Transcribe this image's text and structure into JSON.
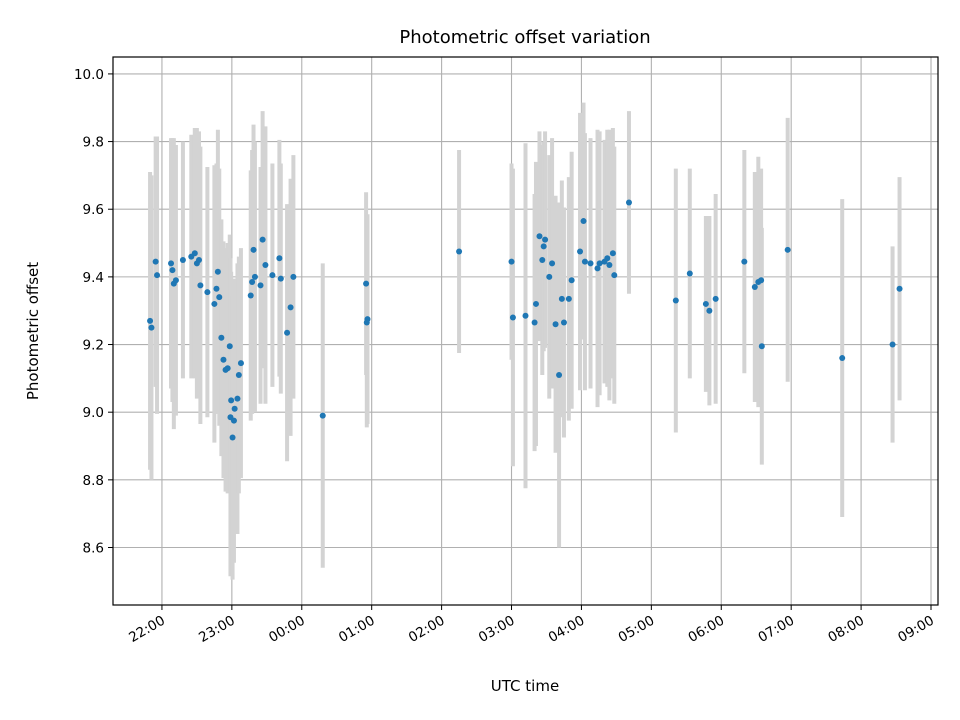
{
  "chart_data": {
    "type": "scatter",
    "title": "Photometric offset variation",
    "xlabel": "UTC time",
    "ylabel": "Photometric offset",
    "x_start": "21:10",
    "xlim_hours": [
      21.3,
      33.1
    ],
    "ylim": [
      8.43,
      10.05
    ],
    "x_ticks": [
      "22:00",
      "23:00",
      "00:00",
      "01:00",
      "02:00",
      "03:00",
      "04:00",
      "05:00",
      "06:00",
      "07:00",
      "08:00",
      "09:00"
    ],
    "y_ticks": [
      "8.6",
      "8.8",
      "9.0",
      "9.2",
      "9.4",
      "9.6",
      "9.8",
      "10.0"
    ],
    "grid": true,
    "point_color": "#1f77b4",
    "errorbar_color": "#d3d3d3",
    "points": [
      {
        "t": 21.83,
        "y": 9.27,
        "e": 0.44
      },
      {
        "t": 21.85,
        "y": 9.25,
        "e": 0.45
      },
      {
        "t": 21.91,
        "y": 9.445,
        "e": 0.37
      },
      {
        "t": 21.93,
        "y": 9.405,
        "e": 0.41
      },
      {
        "t": 22.13,
        "y": 9.44,
        "e": 0.37
      },
      {
        "t": 22.15,
        "y": 9.42,
        "e": 0.39
      },
      {
        "t": 22.17,
        "y": 9.38,
        "e": 0.43
      },
      {
        "t": 22.2,
        "y": 9.39,
        "e": 0.4
      },
      {
        "t": 22.3,
        "y": 9.45,
        "e": 0.35
      },
      {
        "t": 22.42,
        "y": 9.46,
        "e": 0.36
      },
      {
        "t": 22.47,
        "y": 9.47,
        "e": 0.37
      },
      {
        "t": 22.5,
        "y": 9.44,
        "e": 0.4
      },
      {
        "t": 22.53,
        "y": 9.45,
        "e": 0.38
      },
      {
        "t": 22.55,
        "y": 9.375,
        "e": 0.41
      },
      {
        "t": 22.65,
        "y": 9.355,
        "e": 0.37
      },
      {
        "t": 22.75,
        "y": 9.32,
        "e": 0.41
      },
      {
        "t": 22.78,
        "y": 9.365,
        "e": 0.37
      },
      {
        "t": 22.8,
        "y": 9.415,
        "e": 0.42
      },
      {
        "t": 22.82,
        "y": 9.34,
        "e": 0.38
      },
      {
        "t": 22.85,
        "y": 9.22,
        "e": 0.35
      },
      {
        "t": 22.88,
        "y": 9.155,
        "e": 0.35
      },
      {
        "t": 22.91,
        "y": 9.125,
        "e": 0.36
      },
      {
        "t": 22.94,
        "y": 9.13,
        "e": 0.37
      },
      {
        "t": 22.97,
        "y": 9.195,
        "e": 0.33
      },
      {
        "t": 22.98,
        "y": 8.985,
        "e": 0.47
      },
      {
        "t": 22.99,
        "y": 9.035,
        "e": 0.38
      },
      {
        "t": 23.01,
        "y": 8.925,
        "e": 0.42
      },
      {
        "t": 23.03,
        "y": 8.975,
        "e": 0.42
      },
      {
        "t": 23.04,
        "y": 9.01,
        "e": 0.35
      },
      {
        "t": 23.08,
        "y": 9.04,
        "e": 0.4
      },
      {
        "t": 23.1,
        "y": 9.11,
        "e": 0.35
      },
      {
        "t": 23.13,
        "y": 9.145,
        "e": 0.34
      },
      {
        "t": 23.27,
        "y": 9.345,
        "e": 0.37
      },
      {
        "t": 23.29,
        "y": 9.385,
        "e": 0.39
      },
      {
        "t": 23.31,
        "y": 9.48,
        "e": 0.37
      },
      {
        "t": 23.33,
        "y": 9.4,
        "e": 0.4
      },
      {
        "t": 23.41,
        "y": 9.375,
        "e": 0.35
      },
      {
        "t": 23.44,
        "y": 9.51,
        "e": 0.38
      },
      {
        "t": 23.48,
        "y": 9.435,
        "e": 0.41
      },
      {
        "t": 23.58,
        "y": 9.405,
        "e": 0.33
      },
      {
        "t": 23.68,
        "y": 9.455,
        "e": 0.35
      },
      {
        "t": 23.7,
        "y": 9.395,
        "e": 0.34
      },
      {
        "t": 23.79,
        "y": 9.235,
        "e": 0.38
      },
      {
        "t": 23.84,
        "y": 9.31,
        "e": 0.38
      },
      {
        "t": 23.88,
        "y": 9.4,
        "e": 0.36
      },
      {
        "t": 24.3,
        "y": 8.99,
        "e": 0.45
      },
      {
        "t": 24.92,
        "y": 9.38,
        "e": 0.27
      },
      {
        "t": 24.93,
        "y": 9.265,
        "e": 0.31
      },
      {
        "t": 24.94,
        "y": 9.275,
        "e": 0.31
      },
      {
        "t": 26.25,
        "y": 9.475,
        "e": 0.3
      },
      {
        "t": 27.0,
        "y": 9.445,
        "e": 0.29
      },
      {
        "t": 27.02,
        "y": 9.28,
        "e": 0.44
      },
      {
        "t": 27.2,
        "y": 9.285,
        "e": 0.51
      },
      {
        "t": 27.33,
        "y": 9.265,
        "e": 0.38
      },
      {
        "t": 27.35,
        "y": 9.32,
        "e": 0.42
      },
      {
        "t": 27.4,
        "y": 9.52,
        "e": 0.31
      },
      {
        "t": 27.44,
        "y": 9.45,
        "e": 0.34
      },
      {
        "t": 27.46,
        "y": 9.49,
        "e": 0.31
      },
      {
        "t": 27.48,
        "y": 9.51,
        "e": 0.32
      },
      {
        "t": 27.54,
        "y": 9.4,
        "e": 0.36
      },
      {
        "t": 27.58,
        "y": 9.44,
        "e": 0.37
      },
      {
        "t": 27.63,
        "y": 9.26,
        "e": 0.38
      },
      {
        "t": 27.68,
        "y": 9.11,
        "e": 0.51
      },
      {
        "t": 27.72,
        "y": 9.335,
        "e": 0.35
      },
      {
        "t": 27.75,
        "y": 9.265,
        "e": 0.34
      },
      {
        "t": 27.82,
        "y": 9.335,
        "e": 0.36
      },
      {
        "t": 27.86,
        "y": 9.39,
        "e": 0.38
      },
      {
        "t": 27.98,
        "y": 9.475,
        "e": 0.41
      },
      {
        "t": 28.03,
        "y": 9.565,
        "e": 0.35
      },
      {
        "t": 28.05,
        "y": 9.445,
        "e": 0.38
      },
      {
        "t": 28.13,
        "y": 9.44,
        "e": 0.37
      },
      {
        "t": 28.23,
        "y": 9.425,
        "e": 0.41
      },
      {
        "t": 28.26,
        "y": 9.44,
        "e": 0.39
      },
      {
        "t": 28.33,
        "y": 9.445,
        "e": 0.36
      },
      {
        "t": 28.37,
        "y": 9.455,
        "e": 0.38
      },
      {
        "t": 28.4,
        "y": 9.435,
        "e": 0.4
      },
      {
        "t": 28.45,
        "y": 9.47,
        "e": 0.37
      },
      {
        "t": 28.47,
        "y": 9.405,
        "e": 0.38
      },
      {
        "t": 28.68,
        "y": 9.62,
        "e": 0.27
      },
      {
        "t": 29.35,
        "y": 9.33,
        "e": 0.39
      },
      {
        "t": 29.55,
        "y": 9.41,
        "e": 0.31
      },
      {
        "t": 29.78,
        "y": 9.32,
        "e": 0.26
      },
      {
        "t": 29.83,
        "y": 9.3,
        "e": 0.28
      },
      {
        "t": 29.92,
        "y": 9.335,
        "e": 0.31
      },
      {
        "t": 30.33,
        "y": 9.445,
        "e": 0.33
      },
      {
        "t": 30.48,
        "y": 9.37,
        "e": 0.34
      },
      {
        "t": 30.53,
        "y": 9.385,
        "e": 0.37
      },
      {
        "t": 30.57,
        "y": 9.39,
        "e": 0.33
      },
      {
        "t": 30.58,
        "y": 9.195,
        "e": 0.35
      },
      {
        "t": 30.95,
        "y": 9.48,
        "e": 0.39
      },
      {
        "t": 31.73,
        "y": 9.16,
        "e": 0.47
      },
      {
        "t": 32.45,
        "y": 9.2,
        "e": 0.29
      },
      {
        "t": 32.55,
        "y": 9.365,
        "e": 0.33
      }
    ]
  }
}
